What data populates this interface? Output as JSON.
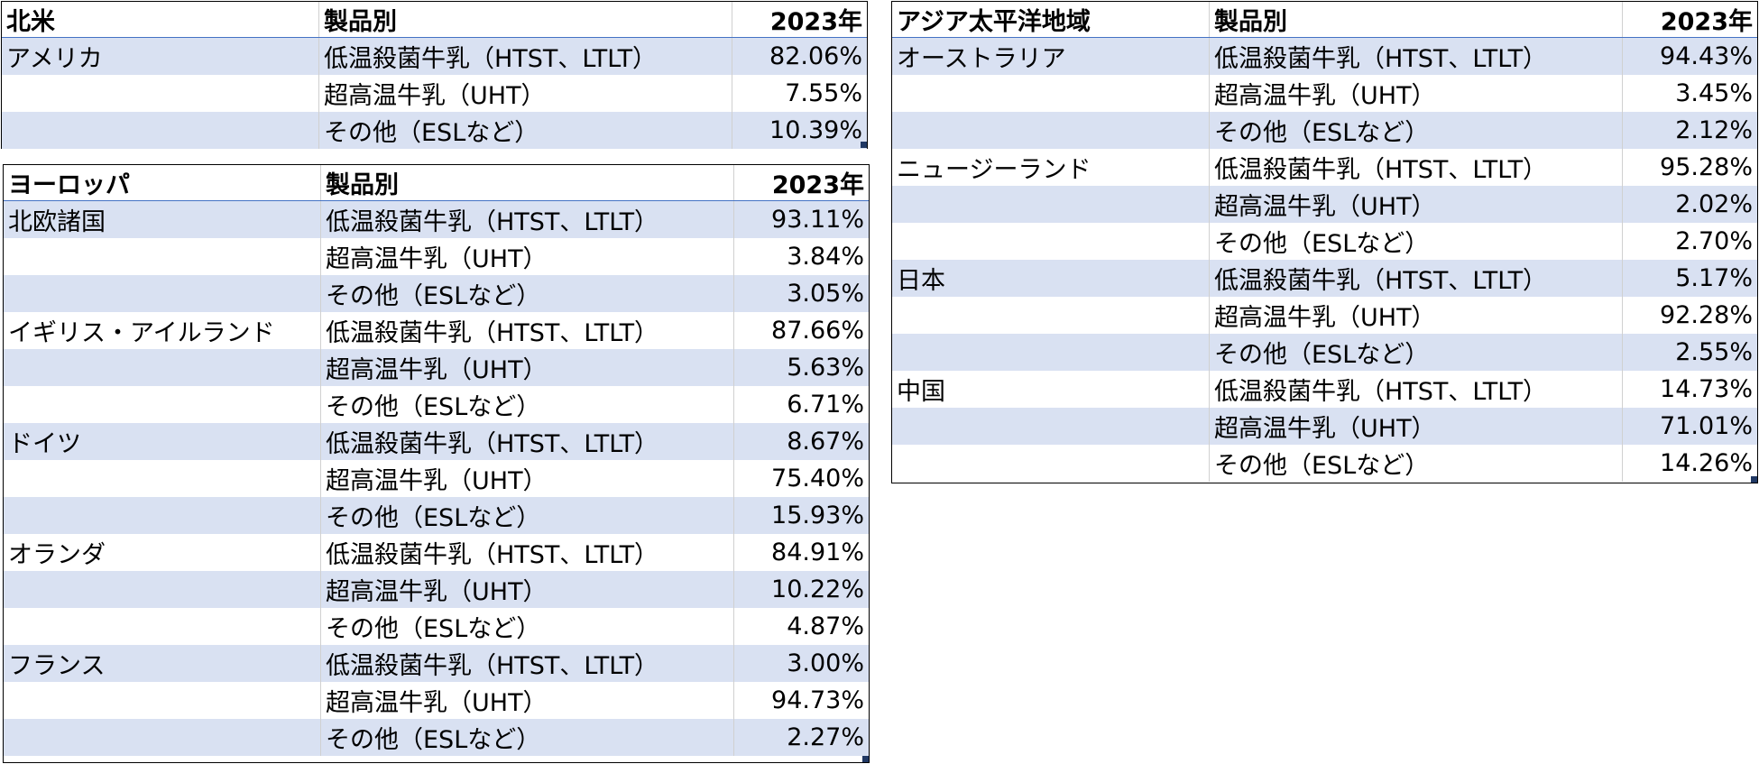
{
  "tables": [
    {
      "title": "北米",
      "col_product": "製品別",
      "col_year": "2023年",
      "rows": [
        {
          "region": "アメリカ",
          "product": "低温殺菌牛乳（HTST、LTLT）",
          "value": "82.06%"
        },
        {
          "region": "",
          "product": "超高温牛乳（UHT）",
          "value": "7.55%"
        },
        {
          "region": "",
          "product": "その他（ESLなど）",
          "value": "10.39%"
        }
      ]
    },
    {
      "title": "ヨーロッパ",
      "col_product": "製品別",
      "col_year": "2023年",
      "rows": [
        {
          "region": "北欧諸国",
          "product": "低温殺菌牛乳（HTST、LTLT）",
          "value": "93.11%"
        },
        {
          "region": "",
          "product": "超高温牛乳（UHT）",
          "value": "3.84%"
        },
        {
          "region": "",
          "product": "その他（ESLなど）",
          "value": "3.05%"
        },
        {
          "region": "イギリス・アイルランド",
          "product": "低温殺菌牛乳（HTST、LTLT）",
          "value": "87.66%"
        },
        {
          "region": "",
          "product": "超高温牛乳（UHT）",
          "value": "5.63%"
        },
        {
          "region": "",
          "product": "その他（ESLなど）",
          "value": "6.71%"
        },
        {
          "region": "ドイツ",
          "product": "低温殺菌牛乳（HTST、LTLT）",
          "value": "8.67%"
        },
        {
          "region": "",
          "product": "超高温牛乳（UHT）",
          "value": "75.40%"
        },
        {
          "region": "",
          "product": "その他（ESLなど）",
          "value": "15.93%"
        },
        {
          "region": "オランダ",
          "product": "低温殺菌牛乳（HTST、LTLT）",
          "value": "84.91%"
        },
        {
          "region": "",
          "product": "超高温牛乳（UHT）",
          "value": "10.22%"
        },
        {
          "region": "",
          "product": "その他（ESLなど）",
          "value": "4.87%"
        },
        {
          "region": "フランス",
          "product": "低温殺菌牛乳（HTST、LTLT）",
          "value": "3.00%"
        },
        {
          "region": "",
          "product": "超高温牛乳（UHT）",
          "value": "94.73%"
        },
        {
          "region": "",
          "product": "その他（ESLなど）",
          "value": "2.27%"
        }
      ]
    },
    {
      "title": "アジア太平洋地域",
      "col_product": "製品別",
      "col_year": "2023年",
      "rows": [
        {
          "region": "オーストラリア",
          "product": "低温殺菌牛乳（HTST、LTLT）",
          "value": "94.43%"
        },
        {
          "region": "",
          "product": "超高温牛乳（UHT）",
          "value": "3.45%"
        },
        {
          "region": "",
          "product": "その他（ESLなど）",
          "value": "2.12%"
        },
        {
          "region": "ニュージーランド",
          "product": "低温殺菌牛乳（HTST、LTLT）",
          "value": "95.28%"
        },
        {
          "region": "",
          "product": "超高温牛乳（UHT）",
          "value": "2.02%"
        },
        {
          "region": "",
          "product": "その他（ESLなど）",
          "value": "2.70%"
        },
        {
          "region": "日本",
          "product": "低温殺菌牛乳（HTST、LTLT）",
          "value": "5.17%"
        },
        {
          "region": "",
          "product": "超高温牛乳（UHT）",
          "value": "92.28%"
        },
        {
          "region": "",
          "product": "その他（ESLなど）",
          "value": "2.55%"
        },
        {
          "region": "中国",
          "product": "低温殺菌牛乳（HTST、LTLT）",
          "value": "14.73%"
        },
        {
          "region": "",
          "product": "超高温牛乳（UHT）",
          "value": "71.01%"
        },
        {
          "region": "",
          "product": "その他（ESLなど）",
          "value": "14.26%"
        }
      ]
    }
  ]
}
